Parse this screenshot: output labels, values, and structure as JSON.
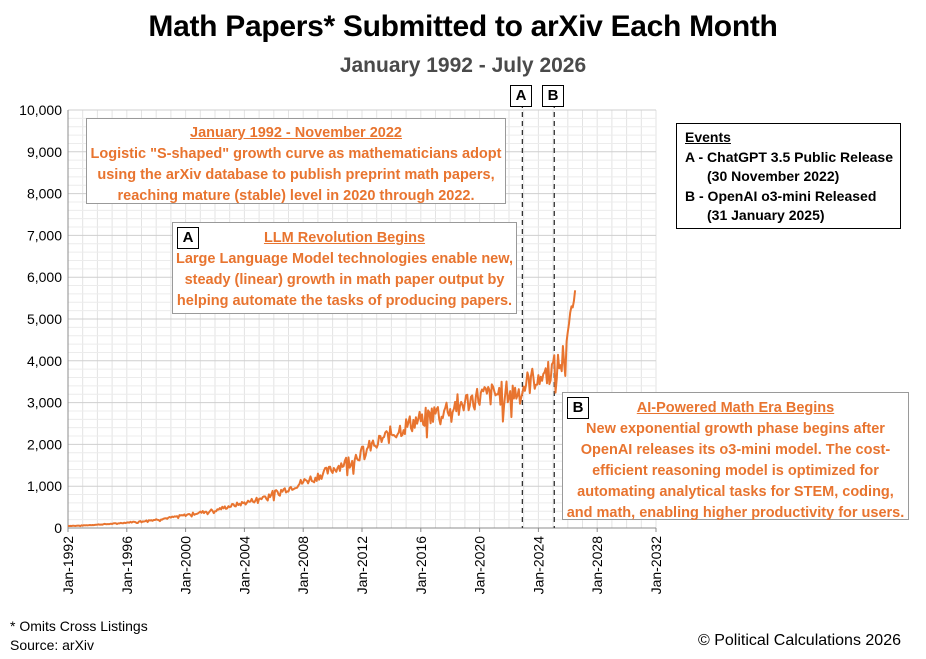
{
  "chart_data": {
    "type": "line",
    "title": "Math Papers* Submitted to arXiv Each Month",
    "subtitle": "January 1992 - July 2026",
    "ylim": [
      0,
      10000
    ],
    "y_ticks": [
      "0",
      "1,000",
      "2,000",
      "3,000",
      "4,000",
      "5,000",
      "6,000",
      "7,000",
      "8,000",
      "9,000",
      "10,000"
    ],
    "x_range": [
      "1992-01",
      "2032-01"
    ],
    "x_ticks": [
      "Jan-1992",
      "Jan-1996",
      "Jan-2000",
      "Jan-2004",
      "Jan-2008",
      "Jan-2012",
      "Jan-2016",
      "Jan-2020",
      "Jan-2024",
      "Jan-2028",
      "Jan-2032"
    ],
    "grid": true,
    "series_color": "#e8742f",
    "series": [
      {
        "values_by_year_jan": [
          [
            1992,
            50
          ],
          [
            1993,
            60
          ],
          [
            1994,
            80
          ],
          [
            1995,
            100
          ],
          [
            1996,
            130
          ],
          [
            1997,
            160
          ],
          [
            1998,
            200
          ],
          [
            1999,
            250
          ],
          [
            2000,
            310
          ],
          [
            2001,
            370
          ],
          [
            2002,
            430
          ],
          [
            2003,
            520
          ],
          [
            2004,
            600
          ],
          [
            2005,
            700
          ],
          [
            2006,
            830
          ],
          [
            2007,
            950
          ],
          [
            2008,
            1100
          ],
          [
            2009,
            1250
          ],
          [
            2010,
            1400
          ],
          [
            2011,
            1600
          ],
          [
            2012,
            1800
          ],
          [
            2013,
            2050
          ],
          [
            2014,
            2250
          ],
          [
            2015,
            2450
          ],
          [
            2016,
            2600
          ],
          [
            2017,
            2750
          ],
          [
            2018,
            2900
          ],
          [
            2019,
            3000
          ],
          [
            2020,
            3150
          ],
          [
            2021,
            3200
          ],
          [
            2022,
            3250
          ],
          [
            2022.9,
            3250
          ],
          [
            2023,
            3400
          ],
          [
            2024,
            3650
          ],
          [
            2025,
            3800
          ],
          [
            2025.6,
            3950
          ],
          [
            2026,
            4700
          ],
          [
            2026.5,
            5700
          ]
        ]
      }
    ],
    "event_lines": [
      {
        "label": "A",
        "x": 2022.91
      },
      {
        "label": "B",
        "x": 2025.08
      }
    ]
  },
  "annotations": {
    "logistic": {
      "header": "January 1992 - November 2022",
      "lines": [
        "Logistic \"S-shaped\" growth curve as mathematicians adopt",
        "using the arXiv database to publish preprint math papers,",
        "reaching mature (stable) level in 2020 through 2022."
      ]
    },
    "llm": {
      "tag": "A",
      "header": "LLM Revolution Begins",
      "lines": [
        "Large Language Model technologies enable new,",
        "steady (linear) growth in math paper output by",
        "helping automate the tasks of producing papers."
      ]
    },
    "ai": {
      "tag": "B",
      "header": "AI-Powered Math Era Begins",
      "lines": [
        "New exponential growth phase begins after",
        "OpenAI releases its o3-mini model. The cost-",
        "efficient reasoning model is optimized for",
        "automating analytical tasks for STEM, coding,",
        "and math, enabling higher productivity for users."
      ]
    }
  },
  "events": {
    "heading": "Events",
    "a_line1": "A - ChatGPT 3.5 Public Release",
    "a_line2": "(30 November 2022)",
    "b_line1": "B - OpenAI o3-mini Released",
    "b_line2": "(31 January 2025)"
  },
  "footnote": {
    "line1": "* Omits Cross Listings",
    "line2": "Source: arXiv"
  },
  "copyright": "© Political Calculations 2026"
}
